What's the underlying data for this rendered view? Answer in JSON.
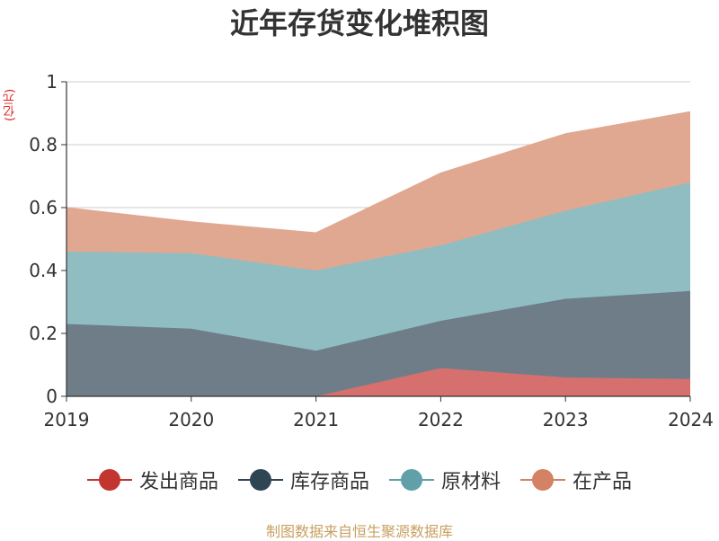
{
  "title": "近年存货变化堆积图",
  "unit_label": "(亿元)",
  "source": "制图数据来自恒生聚源数据库",
  "chart_data": {
    "type": "area",
    "stacked": true,
    "title": "近年存货变化堆积图",
    "ylabel": "(亿元)",
    "x": [
      "2019",
      "2020",
      "2021",
      "2022",
      "2023",
      "2024"
    ],
    "ylim": [
      0,
      1
    ],
    "yticks": [
      "0",
      "0.2",
      "0.4",
      "0.6",
      "0.8",
      "1"
    ],
    "grid": true,
    "legend_position": "bottom",
    "series": [
      {
        "name": "发出商品",
        "color": "#c23531",
        "fill": "#d6706e",
        "values": [
          0,
          0,
          0,
          0.09,
          0.06,
          0.055
        ]
      },
      {
        "name": "库存商品",
        "color": "#2f4554",
        "fill": "#6e7d88",
        "values": [
          0.23,
          0.215,
          0.145,
          0.15,
          0.25,
          0.28
        ]
      },
      {
        "name": "原材料",
        "color": "#61a0a8",
        "fill": "#90bdc2",
        "values": [
          0.23,
          0.24,
          0.255,
          0.24,
          0.28,
          0.345
        ]
      },
      {
        "name": "在产品",
        "color": "#d48265",
        "fill": "#e1a891",
        "values": [
          0.14,
          0.1,
          0.12,
          0.23,
          0.245,
          0.225
        ]
      }
    ]
  }
}
